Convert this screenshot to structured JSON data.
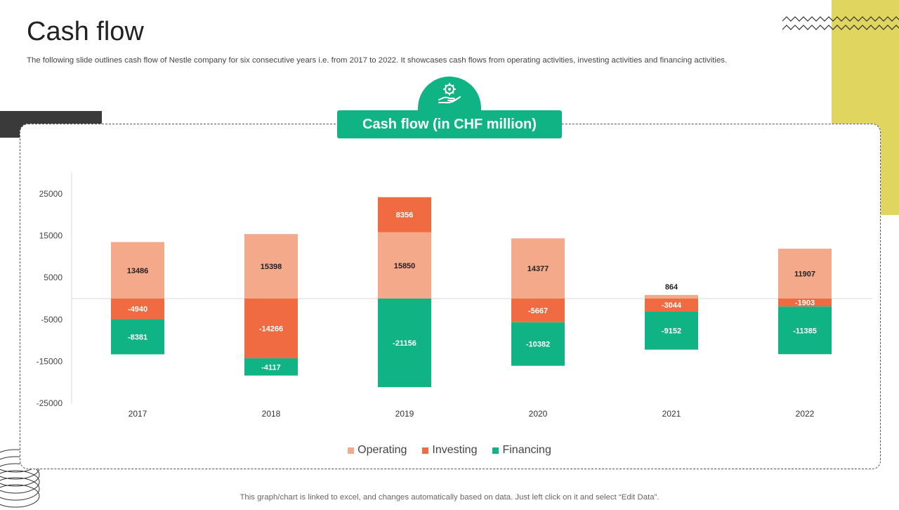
{
  "slide": {
    "title": "Cash flow",
    "subtitle": "The following slide outlines cash flow of Nestle company for six consecutive years i.e. from 2017 to 2022. It showcases cash flows from operating activities, investing activities and financing activities.",
    "footnote": "This graph/chart is linked to excel, and changes automatically based on data. Just left click on it and select “Edit Data”."
  },
  "colors": {
    "accent": "#10b384",
    "operating": "#f4a98b",
    "investing": "#f06b42",
    "financing": "#10b384",
    "yellow": "#dfd55f"
  },
  "chart_data": {
    "type": "bar",
    "stacked": true,
    "title": "Cash flow (in CHF million)",
    "categories": [
      "2017",
      "2018",
      "2019",
      "2020",
      "2021",
      "2022"
    ],
    "series": [
      {
        "name": "Operating",
        "values": [
          13486,
          15398,
          15850,
          14377,
          864,
          11907
        ]
      },
      {
        "name": "Investing",
        "values": [
          -4940,
          -14266,
          8356,
          -5667,
          -3044,
          -1903
        ]
      },
      {
        "name": "Financing",
        "values": [
          -8381,
          -4117,
          -21156,
          -10382,
          -9152,
          -11385
        ]
      }
    ],
    "yticks": [
      25000,
      15000,
      5000,
      -5000,
      -15000,
      -25000
    ],
    "ylim": [
      -25000,
      30000
    ],
    "legend_position": "bottom"
  }
}
